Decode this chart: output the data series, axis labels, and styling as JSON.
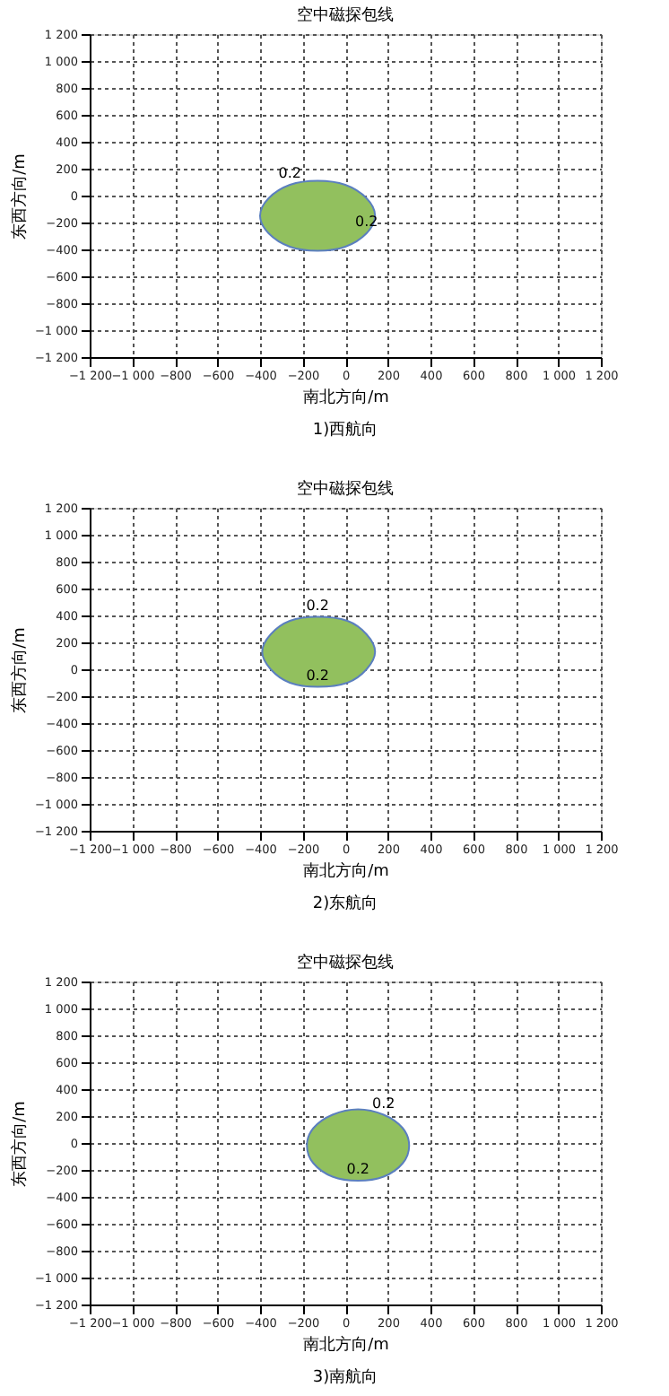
{
  "chart_data": [
    {
      "type": "area",
      "title": "空中磁探包线",
      "xlabel": "南北方向/m",
      "ylabel": "东西方向/m",
      "xlim": [
        -1200,
        1200
      ],
      "ylim": [
        -1200,
        1200
      ],
      "xticks": [
        {
          "value": -1200,
          "label": "−1 200"
        },
        {
          "value": -1000,
          "label": "−1 000"
        },
        {
          "value": -800,
          "label": "−800"
        },
        {
          "value": -600,
          "label": "−600"
        },
        {
          "value": -400,
          "label": "−400"
        },
        {
          "value": -200,
          "label": "−200"
        },
        0,
        200,
        400,
        600,
        800,
        {
          "value": 1000,
          "label": "1 000"
        },
        {
          "value": 1200,
          "label": "1 200"
        }
      ],
      "yticks": [
        {
          "value": -1200,
          "label": "−1 200"
        },
        {
          "value": -1000,
          "label": "−1 000"
        },
        {
          "value": -800,
          "label": "−800"
        },
        {
          "value": -600,
          "label": "−600"
        },
        {
          "value": -400,
          "label": "−400"
        },
        {
          "value": -200,
          "label": "−200"
        },
        0,
        200,
        400,
        600,
        800,
        {
          "value": 1000,
          "label": "1 000"
        },
        {
          "value": 1200,
          "label": "1 200"
        }
      ],
      "grid": true,
      "series": [
        {
          "color": "#92c05e",
          "x": [
            140,
            100,
            0,
            -130,
            -260,
            -360,
            -400,
            -360,
            -260,
            -130,
            0,
            100
          ],
          "values": [
            -150,
            -20,
            80,
            110,
            80,
            -20,
            -150,
            -280,
            -380,
            -410,
            -380,
            -280
          ]
        }
      ],
      "annotations": [
        {
          "text": "0.2",
          "x": -260,
          "y": 80
        },
        {
          "text": "0.2",
          "x": 100,
          "y": -280
        },
        "1)西航向"
      ]
    },
    {
      "type": "area",
      "title": "空中磁探包线",
      "xlabel": "南北方向/m",
      "ylabel": "东西方向/m",
      "xlim": [
        -1200,
        1200
      ],
      "ylim": [
        -1200,
        1200
      ],
      "xticks": [
        {
          "value": -1200,
          "label": "−1 200"
        },
        {
          "value": -1000,
          "label": "−1 000"
        },
        {
          "value": -800,
          "label": "−800"
        },
        {
          "value": -600,
          "label": "−600"
        },
        {
          "value": -400,
          "label": "−400"
        },
        {
          "value": -200,
          "label": "−200"
        },
        0,
        200,
        400,
        600,
        800,
        {
          "value": 1000,
          "label": "1 000"
        },
        {
          "value": 1200,
          "label": "1 200"
        }
      ],
      "yticks": [
        {
          "value": -1200,
          "label": "−1 200"
        },
        {
          "value": -1000,
          "label": "−1 000"
        },
        {
          "value": -800,
          "label": "−800"
        },
        {
          "value": -600,
          "label": "−600"
        },
        {
          "value": -400,
          "label": "−400"
        },
        {
          "value": -200,
          "label": "−200"
        },
        0,
        200,
        400,
        600,
        800,
        {
          "value": 1000,
          "label": "1 000"
        },
        {
          "value": 1200,
          "label": "1 200"
        }
      ],
      "grid": true,
      "series": [
        {
          "color": "#92c05e",
          "x": [
            140,
            100,
            10,
            -130,
            -260,
            -350,
            -390,
            -350,
            -260,
            -130,
            10,
            100
          ],
          "values": [
            130,
            260,
            360,
            390,
            360,
            260,
            130,
            0,
            -100,
            -130,
            -100,
            0
          ]
        }
      ],
      "annotations": [
        {
          "text": "0.2",
          "x": -130,
          "y": 390
        },
        {
          "text": "0.2",
          "x": -130,
          "y": -130
        },
        "2)东航向"
      ]
    },
    {
      "type": "area",
      "title": "空中磁探包线",
      "xlabel": "南北方向/m",
      "ylabel": "东西方向/m",
      "xlim": [
        -1200,
        1200
      ],
      "ylim": [
        -1200,
        1200
      ],
      "xticks": [
        {
          "value": -1200,
          "label": "−1 200"
        },
        {
          "value": -1000,
          "label": "−1 000"
        },
        {
          "value": -800,
          "label": "−800"
        },
        {
          "value": -600,
          "label": "−600"
        },
        {
          "value": -400,
          "label": "−400"
        },
        {
          "value": -200,
          "label": "−200"
        },
        0,
        200,
        400,
        600,
        800,
        {
          "value": 1000,
          "label": "1 000"
        },
        {
          "value": 1200,
          "label": "1 200"
        }
      ],
      "yticks": [
        {
          "value": -1200,
          "label": "−1 200"
        },
        {
          "value": -1000,
          "label": "−1 000"
        },
        {
          "value": -800,
          "label": "−800"
        },
        {
          "value": -600,
          "label": "−600"
        },
        {
          "value": -400,
          "label": "−400"
        },
        {
          "value": -200,
          "label": "−200"
        },
        0,
        200,
        400,
        600,
        800,
        {
          "value": 1000,
          "label": "1 000"
        },
        {
          "value": 1200,
          "label": "1 200"
        }
      ],
      "grid": true,
      "series": [
        {
          "color": "#92c05e",
          "x": [
            300,
            270,
            180,
            60,
            -60,
            -150,
            -180,
            -150,
            -60,
            60,
            180,
            270
          ],
          "values": [
            -20,
            110,
            210,
            250,
            210,
            110,
            -20,
            -150,
            -250,
            -280,
            -250,
            -150
          ]
        }
      ],
      "annotations": [
        {
          "text": "0.2",
          "x": 180,
          "y": 210
        },
        {
          "text": "0.2",
          "x": 60,
          "y": -280
        },
        "3)南航向"
      ]
    }
  ]
}
